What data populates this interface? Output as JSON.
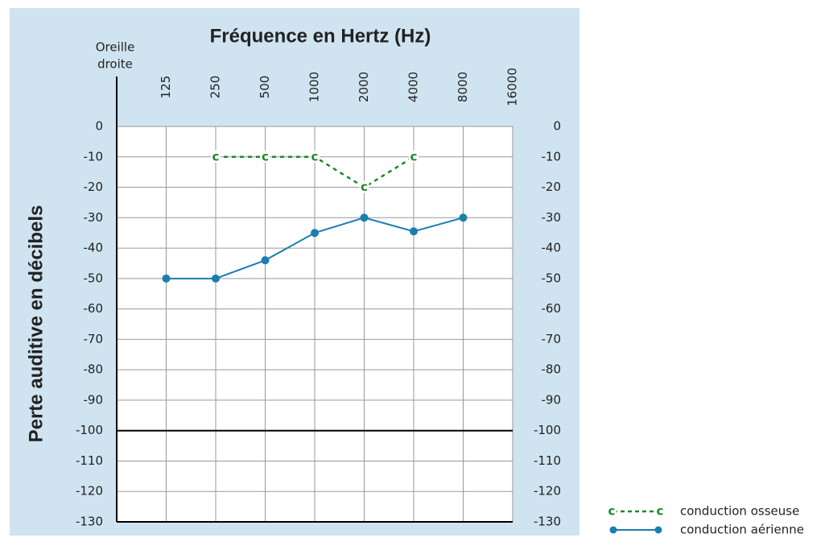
{
  "chart_data": {
    "type": "line",
    "title": "Fréquence en Hertz (Hz)",
    "y_label": "Perte auditive en décibels",
    "ear_label": [
      "Oreille",
      "droite"
    ],
    "x": [
      125,
      250,
      500,
      1000,
      2000,
      4000,
      8000,
      16000
    ],
    "xscale": "log",
    "xlim": [
      62.5,
      16000
    ],
    "xticks": [
      125,
      250,
      500,
      1000,
      2000,
      4000,
      8000,
      16000
    ],
    "ylim": [
      -130,
      0
    ],
    "yticks": [
      0,
      -10,
      -20,
      -30,
      -40,
      -50,
      -60,
      -70,
      -80,
      -90,
      -100,
      -110,
      -120,
      -130
    ],
    "threshold": -100,
    "grid": true,
    "legend": "bottom-right",
    "series": [
      {
        "name": "conduction osseuse",
        "color": "#1a8a2a",
        "style": "dashed",
        "marker": "c",
        "values": [
          null,
          -10,
          -10,
          -10,
          -20,
          -10,
          null,
          null
        ]
      },
      {
        "name": "conduction aérienne",
        "color": "#1a7fb0",
        "style": "solid",
        "marker": "circle",
        "values": [
          -50,
          -50,
          -44,
          -35,
          -30,
          -34.5,
          -30,
          null
        ]
      }
    ]
  }
}
